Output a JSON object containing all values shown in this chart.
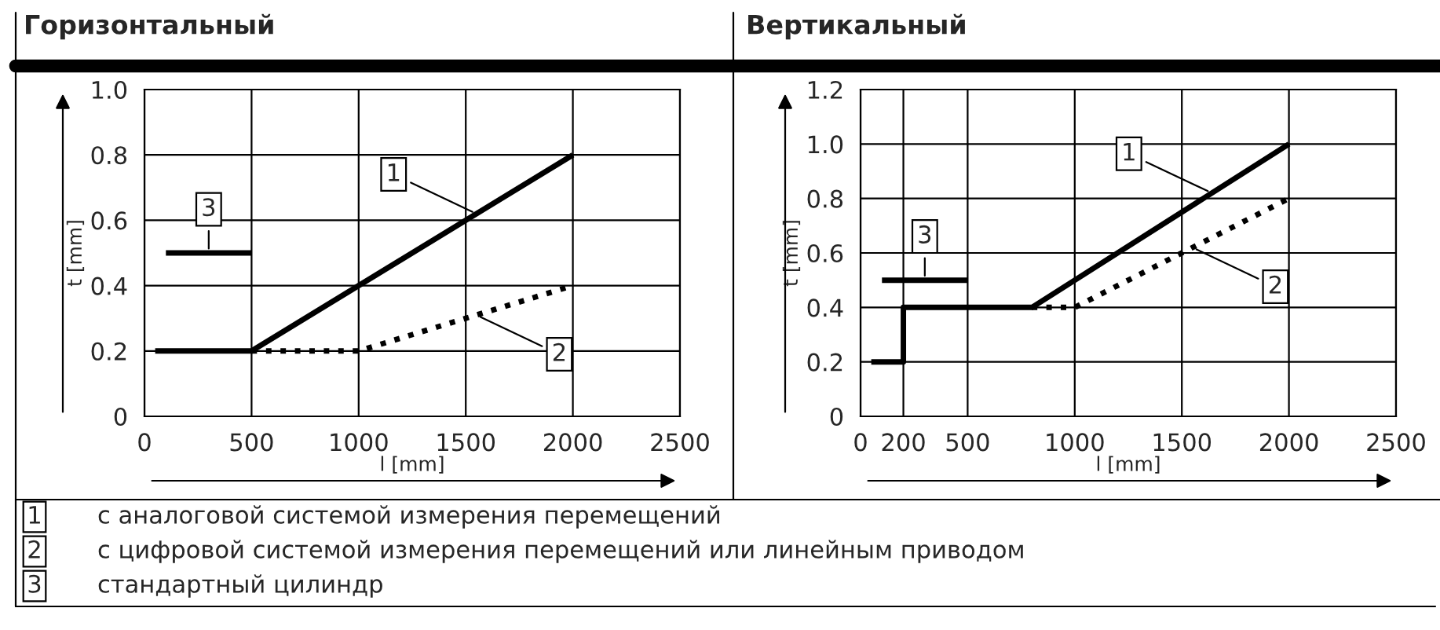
{
  "chart_data": [
    {
      "type": "line",
      "title": "Горизонтальный",
      "xlabel": "l [mm]",
      "ylabel": "t [mm]",
      "xlim": [
        0,
        2500
      ],
      "ylim": [
        0,
        1.0
      ],
      "xticks": [
        0,
        500,
        1000,
        1500,
        2000,
        2500
      ],
      "yticks": [
        0,
        0.2,
        0.4,
        0.6,
        0.8,
        {
          "value": 1,
          "label": "1.0"
        }
      ],
      "grid": true,
      "legend": "bottom",
      "marker": "none",
      "series": [
        {
          "name": "1",
          "color": "#000000",
          "line_style": "solid",
          "x": [
            50,
            500,
            2000
          ],
          "values": [
            0.2,
            0.2,
            0.8
          ]
        },
        {
          "name": "2",
          "color": "#000000",
          "line_style": "dotted",
          "x": [
            500,
            1000,
            2000
          ],
          "values": [
            0.2,
            0.2,
            0.4
          ]
        },
        {
          "name": "3",
          "color": "#000000",
          "line_style": "solid",
          "x": [
            100,
            500
          ],
          "values": [
            0.5,
            0.5
          ]
        }
      ],
      "annotations": [
        "с аналоговой системой измерения перемещений",
        "с цифровой системой измерения перемещений или линейным приводом",
        "стандартный цилиндр"
      ]
    },
    {
      "type": "line",
      "title": "Вертикальный",
      "xlabel": "l [mm]",
      "ylabel": "t [mm]",
      "xlim": [
        0,
        2500
      ],
      "ylim": [
        0,
        1.2
      ],
      "xticks": [
        0,
        200,
        500,
        1000,
        1500,
        2000,
        2500
      ],
      "yticks": [
        0,
        0.2,
        0.4,
        0.6,
        0.8,
        {
          "value": 1,
          "label": "1.0"
        },
        1.2
      ],
      "grid": true,
      "legend": false,
      "marker": "none",
      "series": [
        {
          "name": "1",
          "color": "#000000",
          "line_style": "solid",
          "x": [
            50,
            200,
            200,
            800,
            2000
          ],
          "values": [
            0.2,
            0.2,
            0.4,
            0.4,
            1.0
          ]
        },
        {
          "name": "2",
          "color": "#000000",
          "line_style": "dotted",
          "x": [
            800,
            1000,
            2000
          ],
          "values": [
            0.4,
            0.4,
            0.8
          ]
        },
        {
          "name": "3",
          "color": "#000000",
          "line_style": "solid",
          "x": [
            100,
            500
          ],
          "values": [
            0.5,
            0.5
          ]
        }
      ]
    }
  ]
}
